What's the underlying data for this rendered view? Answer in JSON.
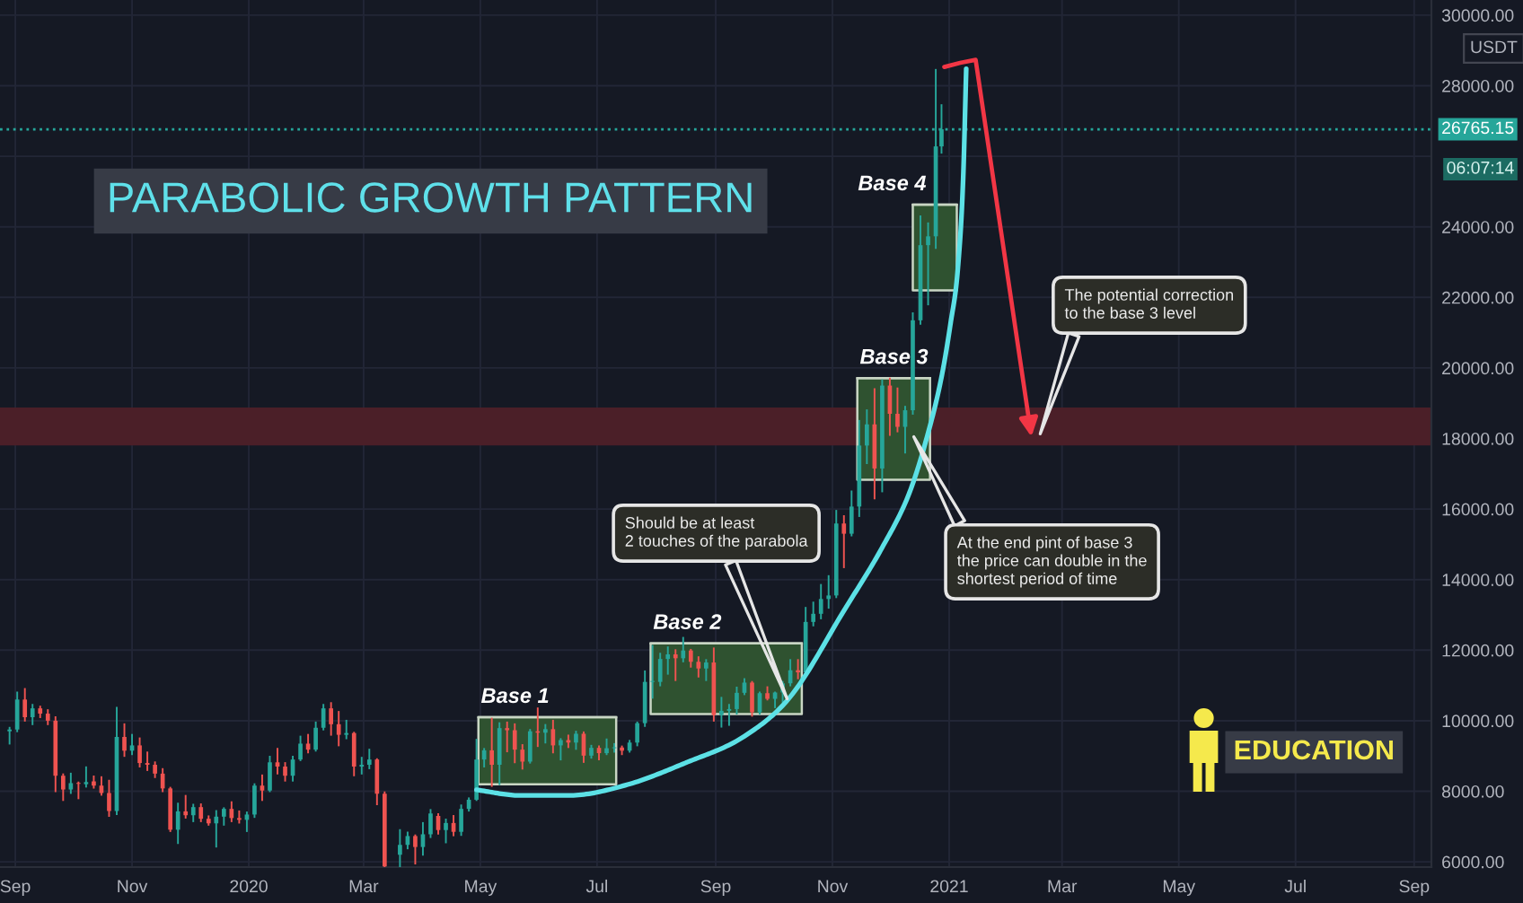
{
  "chart_data": {
    "type": "candlestick",
    "title": "PARABOLIC GROWTH PATTERN",
    "subtitle": "EDUCATION",
    "ylabel": "USDT",
    "x": [
      "2019-08-29",
      "2019-09-02",
      "2019-09-06",
      "2019-09-10",
      "2019-09-14",
      "2019-09-18",
      "2019-09-22",
      "2019-09-26",
      "2019-09-30",
      "2019-10-04",
      "2019-10-08",
      "2019-10-12",
      "2019-10-16",
      "2019-10-20",
      "2019-10-24",
      "2019-10-28",
      "2019-11-01",
      "2019-11-05",
      "2019-11-09",
      "2019-11-13",
      "2019-11-17",
      "2019-11-21",
      "2019-11-25",
      "2019-11-29",
      "2019-12-03",
      "2019-12-07",
      "2019-12-11",
      "2019-12-15",
      "2019-12-19",
      "2019-12-23",
      "2019-12-27",
      "2019-12-31",
      "2020-01-04",
      "2020-01-08",
      "2020-01-12",
      "2020-01-16",
      "2020-01-20",
      "2020-01-24",
      "2020-01-28",
      "2020-02-01",
      "2020-02-05",
      "2020-02-09",
      "2020-02-13",
      "2020-02-17",
      "2020-02-21",
      "2020-02-25",
      "2020-02-29",
      "2020-03-04",
      "2020-03-08",
      "2020-03-12",
      "2020-03-20",
      "2020-03-24",
      "2020-03-28",
      "2020-04-01",
      "2020-04-05",
      "2020-04-09",
      "2020-04-13",
      "2020-04-17",
      "2020-04-21",
      "2020-04-25",
      "2020-04-29",
      "2020-05-03",
      "2020-05-07",
      "2020-05-11",
      "2020-05-15",
      "2020-05-19",
      "2020-05-23",
      "2020-05-27",
      "2020-05-31",
      "2020-06-04",
      "2020-06-08",
      "2020-06-12",
      "2020-06-16",
      "2020-06-20",
      "2020-06-24",
      "2020-06-28",
      "2020-07-02",
      "2020-07-06",
      "2020-07-10",
      "2020-07-14",
      "2020-07-18",
      "2020-07-22",
      "2020-07-26",
      "2020-07-30",
      "2020-08-03",
      "2020-08-07",
      "2020-08-11",
      "2020-08-15",
      "2020-08-19",
      "2020-08-23",
      "2020-08-27",
      "2020-08-31",
      "2020-09-04",
      "2020-09-08",
      "2020-09-12",
      "2020-09-16",
      "2020-09-20",
      "2020-09-24",
      "2020-09-28",
      "2020-10-02",
      "2020-10-06",
      "2020-10-10",
      "2020-10-14",
      "2020-10-18",
      "2020-10-22",
      "2020-10-26",
      "2020-10-30",
      "2020-11-03",
      "2020-11-07",
      "2020-11-11",
      "2020-11-15",
      "2020-11-19",
      "2020-11-23",
      "2020-11-27",
      "2020-12-01",
      "2020-12-05",
      "2020-12-09",
      "2020-12-13",
      "2020-12-17",
      "2020-12-21",
      "2020-12-25",
      "2020-12-28"
    ],
    "ohlc": [
      [
        9700,
        9800,
        9350,
        9750
      ],
      [
        9750,
        10800,
        9700,
        10600
      ],
      [
        10600,
        10900,
        10000,
        10100
      ],
      [
        10100,
        10450,
        9900,
        10350
      ],
      [
        10350,
        10400,
        10100,
        10200
      ],
      [
        10200,
        10300,
        9900,
        10000
      ],
      [
        10000,
        10100,
        8000,
        8440
      ],
      [
        8440,
        8480,
        7750,
        8050
      ],
      [
        8050,
        8500,
        7950,
        8230
      ],
      [
        8230,
        8250,
        7800,
        8210
      ],
      [
        8200,
        8680,
        8130,
        8260
      ],
      [
        8280,
        8420,
        8100,
        8160
      ],
      [
        8160,
        8400,
        7900,
        7950
      ],
      [
        7950,
        8300,
        7300,
        7440
      ],
      [
        7440,
        10370,
        7350,
        9540
      ],
      [
        9540,
        9900,
        9000,
        9150
      ],
      [
        9150,
        9600,
        9050,
        9300
      ],
      [
        9300,
        9500,
        8700,
        8800
      ],
      [
        8800,
        9100,
        8600,
        8750
      ],
      [
        8750,
        8820,
        8400,
        8500
      ],
      [
        8500,
        8630,
        8000,
        8080
      ],
      [
        8080,
        8100,
        6870,
        6910
      ],
      [
        6910,
        7650,
        6530,
        7430
      ],
      [
        7430,
        7870,
        7250,
        7320
      ],
      [
        7320,
        7620,
        7150,
        7550
      ],
      [
        7550,
        7630,
        7150,
        7220
      ],
      [
        7220,
        7290,
        7050,
        7090
      ],
      [
        7090,
        7440,
        6430,
        7280
      ],
      [
        7280,
        7520,
        7050,
        7500
      ],
      [
        7500,
        7690,
        7150,
        7240
      ],
      [
        7240,
        7430,
        7110,
        7190
      ],
      [
        7190,
        7400,
        6870,
        7340
      ],
      [
        7340,
        8200,
        7270,
        8160
      ],
      [
        8160,
        8450,
        7750,
        8020
      ],
      [
        8020,
        8980,
        8000,
        8820
      ],
      [
        8820,
        9200,
        8500,
        8700
      ],
      [
        8700,
        8800,
        8300,
        8440
      ],
      [
        8440,
        8980,
        8300,
        8900
      ],
      [
        8900,
        9550,
        8880,
        9350
      ],
      [
        9350,
        9600,
        9100,
        9180
      ],
      [
        9180,
        9950,
        9150,
        9800
      ],
      [
        9800,
        10450,
        9750,
        10350
      ],
      [
        10350,
        10500,
        9600,
        9900
      ],
      [
        9900,
        10250,
        9300,
        9600
      ],
      [
        9600,
        10000,
        9500,
        9650
      ],
      [
        9650,
        9660,
        8450,
        8700
      ],
      [
        8700,
        8950,
        8500,
        8750
      ],
      [
        8750,
        9180,
        8650,
        8900
      ],
      [
        8900,
        8910,
        7630,
        7930
      ],
      [
        7930,
        7970,
        5870,
        5870
      ],
      [
        6200,
        6900,
        5870,
        6480
      ],
      [
        6480,
        6830,
        6380,
        6730
      ],
      [
        6730,
        6750,
        5950,
        6420
      ],
      [
        6420,
        7100,
        6200,
        6780
      ],
      [
        6780,
        7470,
        6700,
        7370
      ],
      [
        7300,
        7350,
        6800,
        6900
      ],
      [
        6900,
        7200,
        6550,
        7100
      ],
      [
        7100,
        7300,
        6750,
        6850
      ],
      [
        6850,
        7600,
        6760,
        7500
      ],
      [
        7500,
        7800,
        7450,
        7760
      ],
      [
        7760,
        9460,
        7750,
        8900
      ],
      [
        8900,
        9200,
        8700,
        9160
      ],
      [
        9160,
        10060,
        8150,
        8750
      ],
      [
        8750,
        9930,
        8200,
        9790
      ],
      [
        9790,
        9950,
        9130,
        9730
      ],
      [
        9730,
        9900,
        8820,
        9180
      ],
      [
        9180,
        9310,
        8640,
        8840
      ],
      [
        8840,
        9740,
        8810,
        9700
      ],
      [
        9700,
        10350,
        9280,
        9660
      ],
      [
        9660,
        9880,
        9380,
        9760
      ],
      [
        9760,
        10000,
        9100,
        9300
      ],
      [
        9300,
        9480,
        8900,
        9450
      ],
      [
        9450,
        9580,
        9250,
        9380
      ],
      [
        9380,
        9690,
        9200,
        9630
      ],
      [
        9630,
        9670,
        8830,
        9010
      ],
      [
        9010,
        9290,
        8950,
        9230
      ],
      [
        9230,
        9270,
        8900,
        9080
      ],
      [
        9080,
        9470,
        9050,
        9220
      ],
      [
        9220,
        9340,
        9120,
        9240
      ],
      [
        9240,
        9270,
        9050,
        9150
      ],
      [
        9150,
        9430,
        9120,
        9380
      ],
      [
        9380,
        9950,
        9300,
        9930
      ],
      [
        9930,
        11400,
        9850,
        11100
      ],
      [
        11100,
        12120,
        10650,
        11100
      ],
      [
        11100,
        11900,
        11000,
        11750
      ],
      [
        11750,
        12080,
        11330,
        11880
      ],
      [
        11880,
        12000,
        11150,
        11770
      ],
      [
        11770,
        12350,
        11680,
        11990
      ],
      [
        11990,
        12010,
        11530,
        11670
      ],
      [
        11670,
        11800,
        11250,
        11480
      ],
      [
        11480,
        11720,
        11150,
        11650
      ],
      [
        11650,
        12050,
        10000,
        10160
      ],
      [
        10160,
        10650,
        9830,
        10280
      ],
      [
        10280,
        10450,
        9880,
        10330
      ],
      [
        10330,
        10940,
        10200,
        10790
      ],
      [
        10790,
        11180,
        10750,
        11080
      ],
      [
        11080,
        11100,
        10140,
        10240
      ],
      [
        10240,
        10800,
        10200,
        10780
      ],
      [
        10780,
        10950,
        10600,
        10620
      ],
      [
        10620,
        10800,
        10380,
        10800
      ],
      [
        10800,
        11100,
        10530,
        11060
      ],
      [
        11060,
        11720,
        11000,
        11430
      ],
      [
        11430,
        11720,
        11200,
        11370
      ],
      [
        11370,
        13200,
        11300,
        12800
      ],
      [
        12800,
        13350,
        12700,
        13030
      ],
      [
        13030,
        13850,
        12900,
        13450
      ],
      [
        13450,
        14100,
        13200,
        13550
      ],
      [
        13550,
        15950,
        13500,
        15590
      ],
      [
        15590,
        15800,
        14350,
        15300
      ],
      [
        15300,
        16500,
        15250,
        16070
      ],
      [
        16070,
        18500,
        15800,
        17800
      ],
      [
        17800,
        18800,
        17300,
        18400
      ],
      [
        18400,
        19400,
        16300,
        17150
      ],
      [
        17150,
        19650,
        16500,
        19500
      ],
      [
        19500,
        19700,
        18100,
        18700
      ],
      [
        18700,
        19420,
        18200,
        18330
      ],
      [
        18330,
        18900,
        17600,
        18800
      ],
      [
        18800,
        21550,
        18700,
        21350
      ],
      [
        21350,
        24300,
        21250,
        23480
      ],
      [
        23480,
        24100,
        21800,
        23730
      ],
      [
        23730,
        28450,
        23400,
        26280
      ],
      [
        26280,
        27450,
        26100,
        26765.15
      ]
    ],
    "series": [
      {
        "type": "line",
        "color": "#c9d6c4",
        "x": [
          "2020-04-30",
          "2020-07-11"
        ],
        "values": [
          10100,
          10100
        ],
        "lower": [
          8200,
          8200
        ],
        "upper": [
          10100,
          10100
        ]
      },
      {
        "type": "line",
        "color": "#c9d6c4",
        "x": [
          "2020-07-29",
          "2020-10-16"
        ],
        "values": [
          12190,
          12190
        ],
        "lower": [
          10190,
          10190
        ],
        "upper": [
          12190,
          12190
        ]
      },
      {
        "type": "line",
        "color": "#c9d6c4",
        "x": [
          "2020-11-14",
          "2020-12-22"
        ],
        "values": [
          19710,
          19710
        ],
        "lower": [
          16830,
          16830
        ],
        "upper": [
          19710,
          19710
        ]
      },
      {
        "type": "line",
        "color": "#c9d6c4",
        "x": [
          "2020-12-13",
          "2021-01-05"
        ],
        "values": [
          24630,
          24630
        ],
        "lower": [
          22200,
          22200
        ],
        "upper": [
          24630,
          24630
        ]
      },
      {
        "type": "line",
        "color": "#5ce1e6",
        "x": [
          "2020-04-29",
          "2020-05-22",
          "2020-06-16",
          "2020-07-17",
          "2020-08-16",
          "2020-09-16",
          "2020-10-10",
          "2020-11-07",
          "2020-11-27",
          "2020-12-11",
          "2020-12-20",
          "2020-12-28",
          "2021-01-01T18:00",
          "2021-01-05T12:00",
          "2021-01-08T07:00",
          "2021-01-09T22:00"
        ],
        "values": [
          8040,
          7880,
          7880,
          8190,
          8800,
          9560,
          10680,
          13120,
          14910,
          16430,
          17960,
          19740,
          21270,
          22790,
          25340,
          28480
        ]
      }
    ],
    "bands": [
      {
        "axis": "y",
        "from": 17800,
        "to": 18880,
        "color": "#4b1f28"
      }
    ],
    "ref_lines": [
      {
        "axis": "y",
        "value": 26765.15,
        "label": "26765.15",
        "color": "#26a69a",
        "line_style": "dotted"
      }
    ],
    "annotations": [
      {
        "text": "Base 1",
        "x": "2020-04-30",
        "y": 10100
      },
      {
        "text": "Base 2",
        "x": "2020-07-29",
        "y": 12190
      },
      {
        "text": "Base 3",
        "x": "2020-11-14",
        "y": 19710
      },
      {
        "text": "Base 4",
        "x": "2020-12-13",
        "y": 24630
      },
      "Should be at least\n2 touches of the parabola",
      "At the end pint of base 3\nthe price can double in the\nshortest period of time",
      "The potential correction\nto the base 3 level",
      "06:07:14"
    ],
    "xlim": [
      "2019-08-24",
      "2021-09-10"
    ],
    "xticks": [
      {
        "value": "2019-09-01",
        "label": "Sep"
      },
      {
        "value": "2019-11-01",
        "label": "Nov"
      },
      {
        "value": "2020-01-01",
        "label": "2020"
      },
      {
        "value": "2020-03-01",
        "label": "Mar"
      },
      {
        "value": "2020-05-01",
        "label": "May"
      },
      {
        "value": "2020-07-01",
        "label": "Jul"
      },
      {
        "value": "2020-09-01",
        "label": "Sep"
      },
      {
        "value": "2020-11-01",
        "label": "Nov"
      },
      {
        "value": "2021-01-01",
        "label": "2021"
      },
      {
        "value": "2021-03-01",
        "label": "Mar"
      },
      {
        "value": "2021-05-01",
        "label": "May"
      },
      {
        "value": "2021-07-01",
        "label": "Jul"
      },
      {
        "value": "2021-09-01",
        "label": "Sep"
      }
    ],
    "ylim": [
      5850,
      30430
    ],
    "yticks": [
      {
        "value": 6000,
        "label": "6000.00"
      },
      {
        "value": 8000,
        "label": "8000.00"
      },
      {
        "value": 10000,
        "label": "10000.00"
      },
      {
        "value": 12000,
        "label": "12000.00"
      },
      {
        "value": 14000,
        "label": "14000.00"
      },
      {
        "value": 16000,
        "label": "16000.00"
      },
      {
        "value": 18000,
        "label": "18000.00"
      },
      {
        "value": 20000,
        "label": "20000.00"
      },
      {
        "value": 22000,
        "label": "22000.00"
      },
      {
        "value": 24000,
        "label": "24000.00"
      },
      {
        "value": 26000,
        "label": null
      },
      {
        "value": 28000,
        "label": "28000.00"
      },
      {
        "value": 30000,
        "label": "30000.00"
      }
    ],
    "grid": true
  }
}
